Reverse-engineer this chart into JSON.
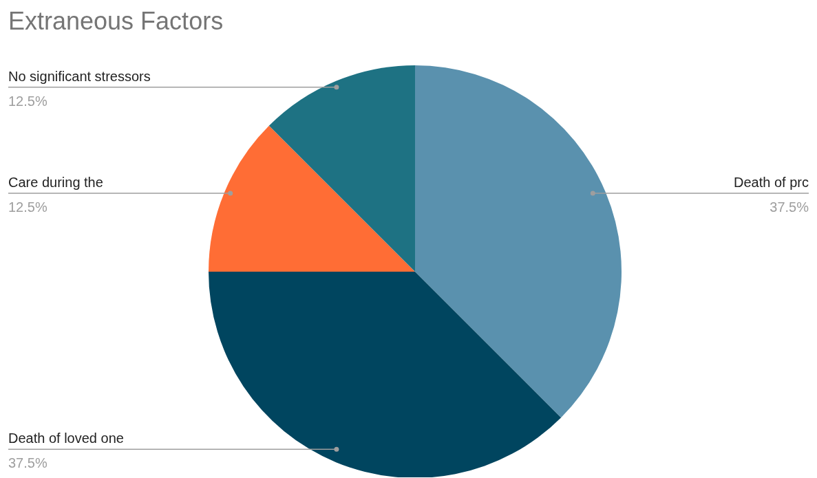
{
  "chart_data": {
    "type": "pie",
    "title": "Extraneous Factors",
    "categories": [
      "Death of prc",
      "Death of loved one",
      "Care during the",
      "No significant stressors"
    ],
    "values": [
      37.5,
      37.5,
      12.5,
      12.5
    ],
    "colors": [
      "#5a91ae",
      "#00455f",
      "#ff6d35",
      "#1e7283"
    ],
    "value_labels": [
      "37.5%",
      "37.5%",
      "12.5%",
      "12.5%"
    ],
    "legend": false
  }
}
